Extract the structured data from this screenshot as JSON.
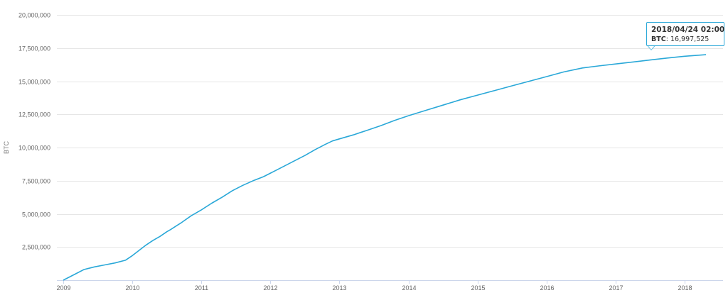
{
  "chart_data": {
    "type": "line",
    "ylabel": "BTC",
    "xlabel": "",
    "ylim": [
      0,
      20000000
    ],
    "y_ticks": [
      2500000,
      5000000,
      7500000,
      10000000,
      12500000,
      15000000,
      17500000,
      20000000
    ],
    "y_tick_labels": [
      "2,500,000",
      "5,000,000",
      "7,500,000",
      "10,000,000",
      "12,500,000",
      "15,000,000",
      "17,500,000",
      "20,000,000"
    ],
    "x_range": [
      2009.0,
      2018.4
    ],
    "x_ticks": [
      2009,
      2010,
      2011,
      2012,
      2013,
      2014,
      2015,
      2016,
      2017,
      2018
    ],
    "x_tick_labels": [
      "2009",
      "2010",
      "2011",
      "2012",
      "2013",
      "2014",
      "2015",
      "2016",
      "2017",
      "2018"
    ],
    "grid": true,
    "line_color": "#2aa8d8",
    "series": [
      {
        "x": [
          2009.0,
          2009.15,
          2009.3,
          2009.45,
          2009.6,
          2009.75,
          2009.9,
          2010.0,
          2010.1,
          2010.2,
          2010.3,
          2010.4,
          2010.5,
          2010.55,
          2010.7,
          2010.85,
          2011.0,
          2011.15,
          2011.3,
          2011.45,
          2011.6,
          2011.75,
          2011.9,
          2012.05,
          2012.2,
          2012.35,
          2012.5,
          2012.65,
          2012.8,
          2012.9,
          2013.0,
          2013.2,
          2013.4,
          2013.6,
          2013.8,
          2014.0,
          2014.25,
          2014.5,
          2014.75,
          2015.0,
          2015.25,
          2015.5,
          2015.75,
          2016.0,
          2016.25,
          2016.52,
          2016.75,
          2017.0,
          2017.25,
          2017.5,
          2017.75,
          2018.0,
          2018.31
        ],
        "values": [
          0,
          400000,
          800000,
          1000000,
          1150000,
          1300000,
          1500000,
          1850000,
          2250000,
          2650000,
          3000000,
          3300000,
          3650000,
          3800000,
          4300000,
          4850000,
          5300000,
          5800000,
          6250000,
          6750000,
          7150000,
          7500000,
          7800000,
          8200000,
          8600000,
          9000000,
          9400000,
          9850000,
          10250000,
          10500000,
          10650000,
          10950000,
          11300000,
          11650000,
          12050000,
          12400000,
          12800000,
          13200000,
          13600000,
          13950000,
          14300000,
          14650000,
          15000000,
          15350000,
          15700000,
          16000000,
          16150000,
          16300000,
          16450000,
          16600000,
          16750000,
          16880000,
          16997525
        ]
      }
    ],
    "tooltip": {
      "date": "2018/04/24 02:00",
      "series_label": "BTC",
      "value_text": "16,997,525"
    }
  }
}
